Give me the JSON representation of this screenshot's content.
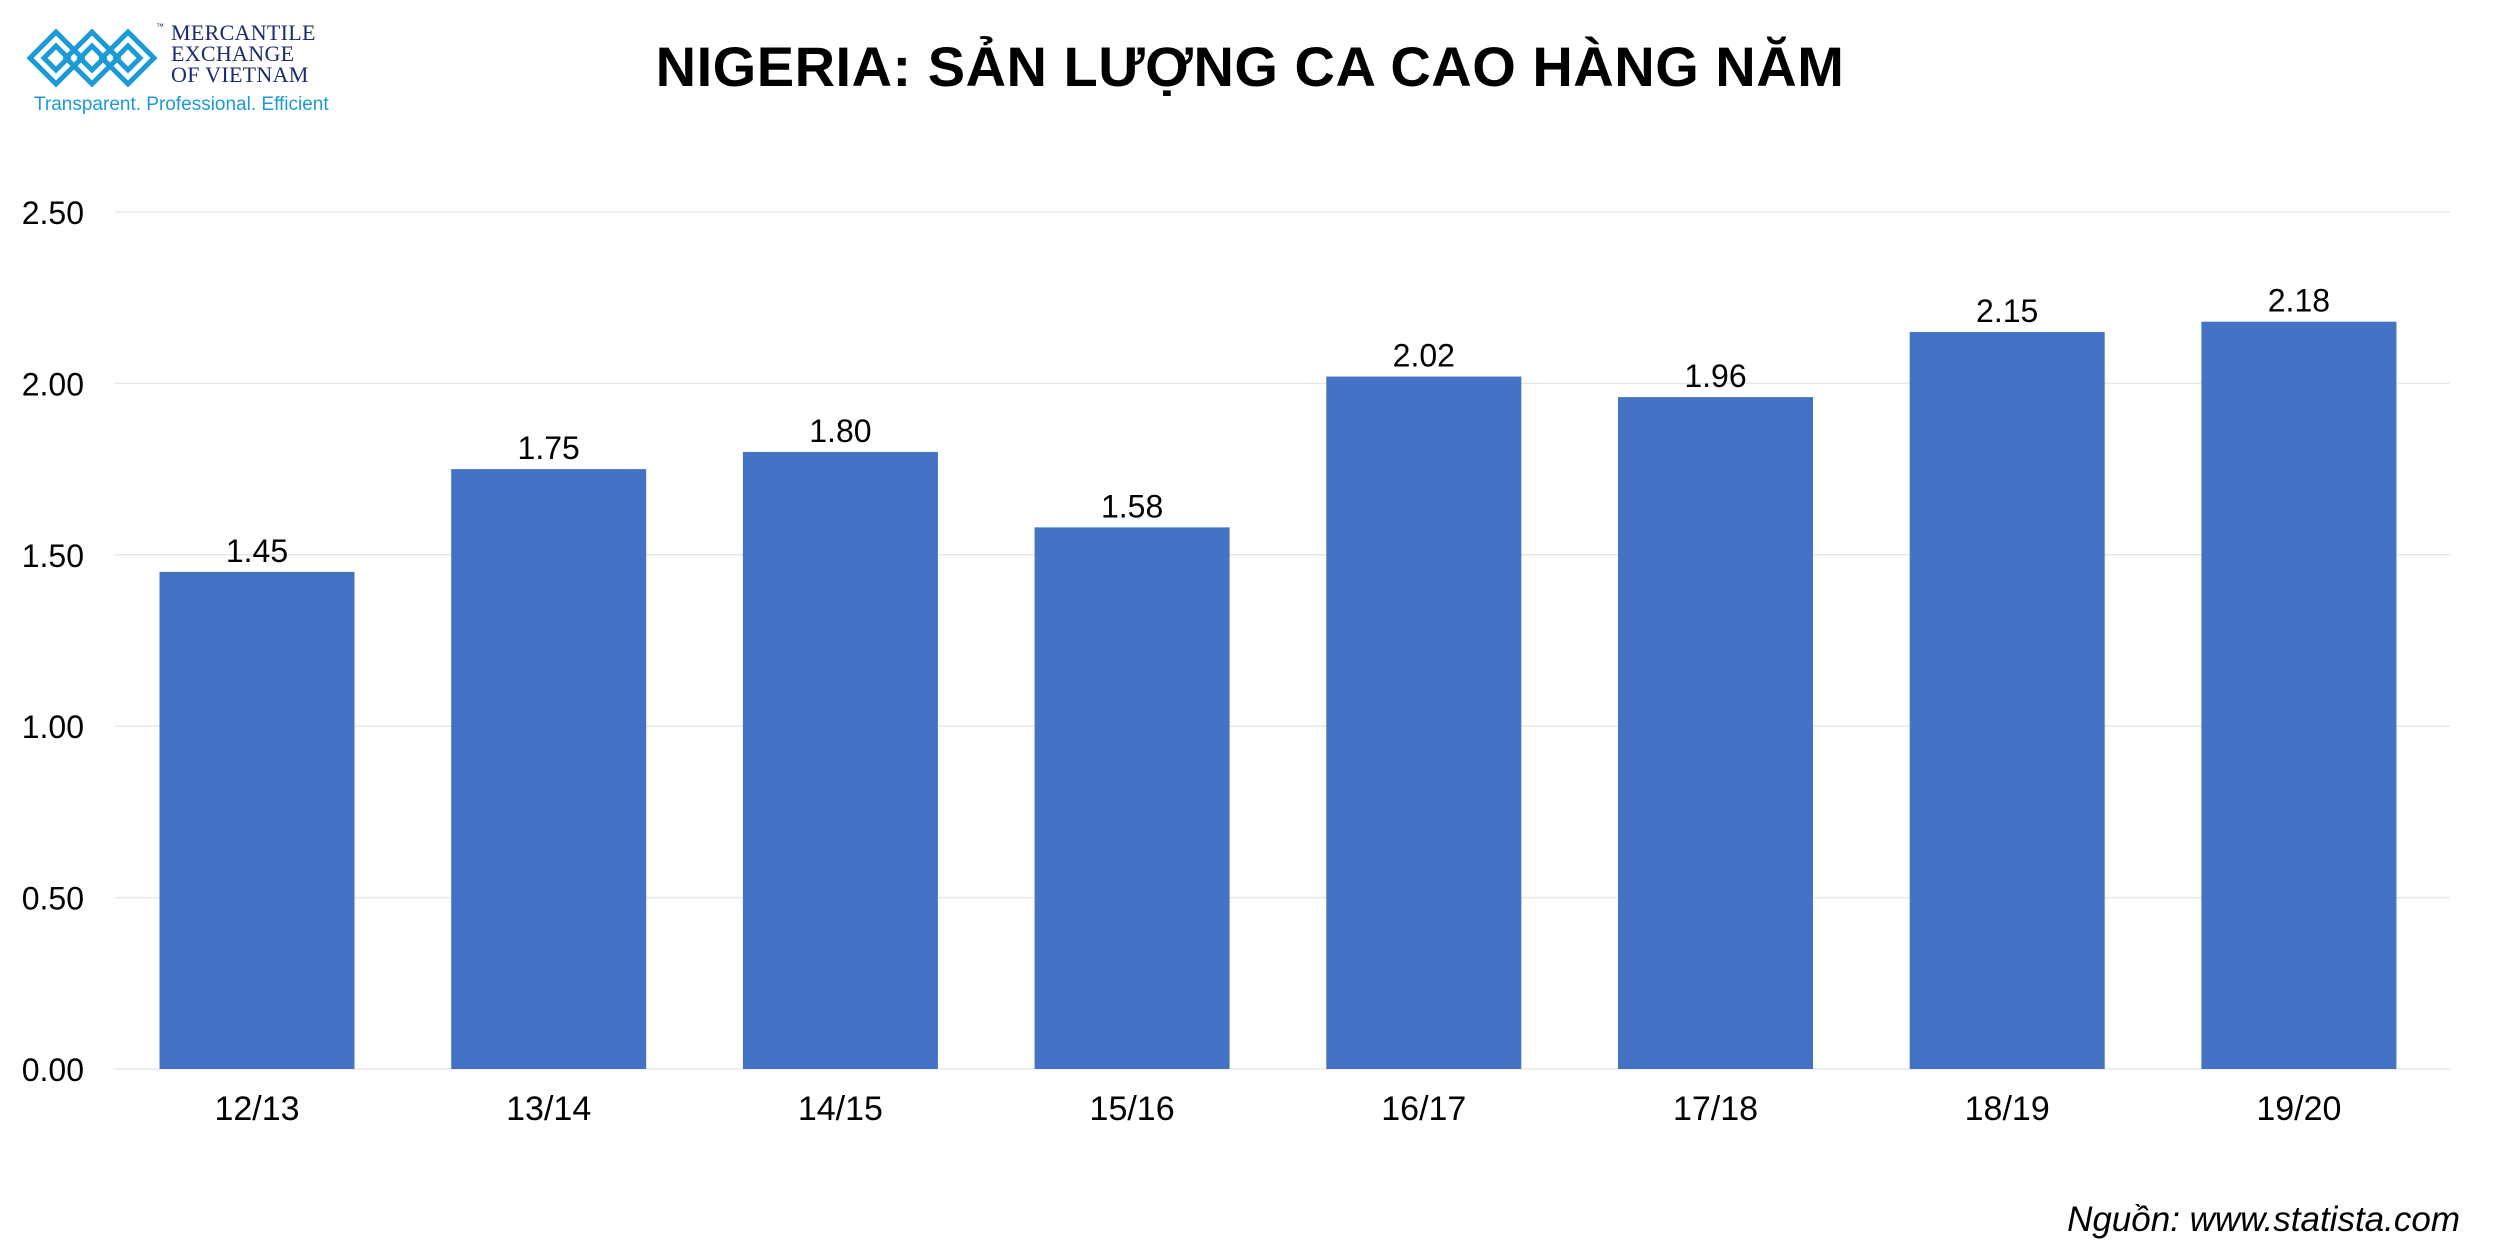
{
  "logo": {
    "name": "logo-vietnam-mercantile-exchange",
    "lines": [
      "MERCANTILE",
      "EXCHANGE",
      "OF VIETNAM"
    ],
    "tm": "™",
    "tagline": "Transparent. Professional. Efficient"
  },
  "colors": {
    "bar": "#4472c4",
    "grid": "#e8e8e8",
    "text": "#000000",
    "logo_blue": "#1a9ad6",
    "logo_navy": "#1d2a6b"
  },
  "chart_data": {
    "type": "bar",
    "title": "NIGERIA: SẢN LƯỢNG CA CAO HÀNG NĂM",
    "categories": [
      "12/13",
      "13/14",
      "14/15",
      "15/16",
      "16/17",
      "17/18",
      "18/19",
      "19/20"
    ],
    "values": [
      1.45,
      1.75,
      1.8,
      1.58,
      2.02,
      1.96,
      2.15,
      2.18
    ],
    "value_labels": [
      "1.45",
      "1.75",
      "1.80",
      "1.58",
      "2.02",
      "1.96",
      "2.15",
      "2.18"
    ],
    "ylim": [
      0,
      2.5
    ],
    "yticks": [
      "0.00",
      "0.50",
      "1.00",
      "1.50",
      "2.00",
      "2.50"
    ],
    "grid": true,
    "legend": "none",
    "xlabel": "",
    "ylabel": ""
  },
  "source": "Nguồn: www.statista.com"
}
